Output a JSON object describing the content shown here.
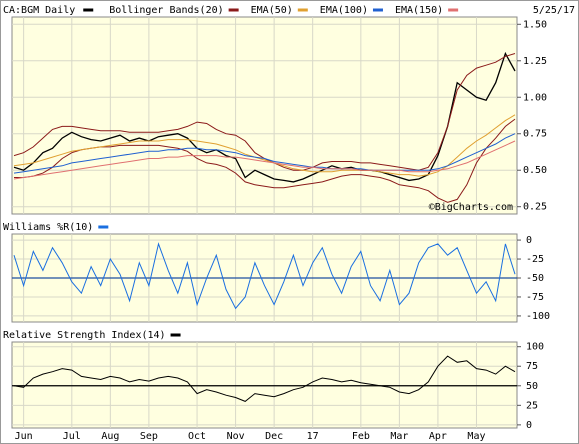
{
  "header": {
    "symbol": "CA:BGM Daily",
    "date": "5/25/17",
    "watermark": "©BigCharts.com"
  },
  "chart_data": [
    {
      "type": "line",
      "ylim": [
        0.2,
        1.55
      ],
      "yticks": [
        {
          "value": 1.5,
          "label": "1.50"
        },
        {
          "value": 1.25,
          "label": "1.25"
        },
        {
          "value": 1.0,
          "label": "1.00"
        },
        {
          "value": 0.75,
          "label": "0.75"
        },
        {
          "value": 0.5,
          "label": "0.50"
        },
        {
          "value": 0.25,
          "label": "0.25"
        }
      ],
      "grid": true,
      "series": [
        {
          "name": "CA:BGM Daily",
          "color": "#000000",
          "values": [
            0.52,
            0.5,
            0.55,
            0.62,
            0.65,
            0.72,
            0.76,
            0.73,
            0.71,
            0.7,
            0.72,
            0.74,
            0.7,
            0.72,
            0.7,
            0.73,
            0.74,
            0.75,
            0.72,
            0.65,
            0.62,
            0.64,
            0.6,
            0.58,
            0.45,
            0.5,
            0.47,
            0.44,
            0.43,
            0.42,
            0.44,
            0.47,
            0.5,
            0.53,
            0.51,
            0.52,
            0.5,
            0.5,
            0.49,
            0.47,
            0.45,
            0.43,
            0.44,
            0.47,
            0.6,
            0.8,
            1.1,
            1.05,
            1.0,
            0.98,
            1.1,
            1.3,
            1.18
          ]
        },
        {
          "name": "Bollinger Bands(20)",
          "color": "#8b1a1a",
          "values": [
            0.6,
            0.62,
            0.66,
            0.72,
            0.78,
            0.8,
            0.8,
            0.79,
            0.78,
            0.77,
            0.77,
            0.77,
            0.76,
            0.76,
            0.76,
            0.76,
            0.77,
            0.78,
            0.8,
            0.83,
            0.82,
            0.78,
            0.75,
            0.74,
            0.7,
            0.62,
            0.58,
            0.55,
            0.52,
            0.5,
            0.5,
            0.52,
            0.55,
            0.56,
            0.56,
            0.56,
            0.55,
            0.55,
            0.54,
            0.53,
            0.52,
            0.51,
            0.5,
            0.52,
            0.62,
            0.8,
            1.05,
            1.15,
            1.2,
            1.22,
            1.24,
            1.28,
            1.3
          ],
          "lower": [
            0.45,
            0.45,
            0.46,
            0.48,
            0.52,
            0.58,
            0.62,
            0.64,
            0.65,
            0.66,
            0.66,
            0.67,
            0.67,
            0.67,
            0.67,
            0.67,
            0.66,
            0.65,
            0.63,
            0.58,
            0.55,
            0.54,
            0.52,
            0.48,
            0.42,
            0.4,
            0.39,
            0.38,
            0.38,
            0.39,
            0.4,
            0.41,
            0.42,
            0.44,
            0.46,
            0.47,
            0.47,
            0.46,
            0.45,
            0.43,
            0.4,
            0.39,
            0.38,
            0.36,
            0.31,
            0.28,
            0.3,
            0.4,
            0.55,
            0.65,
            0.72,
            0.8,
            0.85
          ]
        },
        {
          "name": "EMA(50)",
          "color": "#e0a030",
          "values": [
            0.53,
            0.54,
            0.55,
            0.57,
            0.59,
            0.61,
            0.63,
            0.64,
            0.65,
            0.66,
            0.67,
            0.68,
            0.69,
            0.7,
            0.7,
            0.7,
            0.71,
            0.71,
            0.71,
            0.7,
            0.69,
            0.68,
            0.66,
            0.64,
            0.61,
            0.59,
            0.57,
            0.55,
            0.53,
            0.51,
            0.5,
            0.49,
            0.49,
            0.49,
            0.5,
            0.5,
            0.5,
            0.5,
            0.49,
            0.48,
            0.47,
            0.47,
            0.46,
            0.47,
            0.49,
            0.53,
            0.59,
            0.65,
            0.7,
            0.74,
            0.79,
            0.84,
            0.88
          ]
        },
        {
          "name": "EMA(100)",
          "color": "#2060d0",
          "values": [
            0.48,
            0.49,
            0.5,
            0.51,
            0.52,
            0.53,
            0.55,
            0.56,
            0.57,
            0.58,
            0.59,
            0.6,
            0.61,
            0.62,
            0.63,
            0.63,
            0.64,
            0.64,
            0.65,
            0.65,
            0.64,
            0.64,
            0.63,
            0.62,
            0.6,
            0.59,
            0.58,
            0.56,
            0.55,
            0.54,
            0.53,
            0.52,
            0.52,
            0.51,
            0.51,
            0.51,
            0.51,
            0.5,
            0.5,
            0.5,
            0.5,
            0.5,
            0.5,
            0.5,
            0.51,
            0.53,
            0.56,
            0.59,
            0.62,
            0.65,
            0.68,
            0.72,
            0.75
          ]
        },
        {
          "name": "EMA(150)",
          "color": "#e07070",
          "values": [
            0.44,
            0.45,
            0.46,
            0.47,
            0.48,
            0.49,
            0.5,
            0.51,
            0.52,
            0.53,
            0.54,
            0.55,
            0.56,
            0.57,
            0.58,
            0.58,
            0.59,
            0.59,
            0.6,
            0.6,
            0.6,
            0.6,
            0.59,
            0.59,
            0.58,
            0.57,
            0.56,
            0.55,
            0.54,
            0.53,
            0.52,
            0.52,
            0.51,
            0.51,
            0.51,
            0.51,
            0.5,
            0.5,
            0.5,
            0.5,
            0.5,
            0.49,
            0.49,
            0.49,
            0.5,
            0.51,
            0.53,
            0.55,
            0.58,
            0.61,
            0.64,
            0.67,
            0.7
          ]
        }
      ]
    },
    {
      "type": "line",
      "ylim": [
        -108,
        8
      ],
      "yticks": [
        0,
        -25,
        -50,
        -75,
        -100
      ],
      "grid": true,
      "reference": -50,
      "reference_color": "#1f4fa0",
      "series": [
        {
          "name": "Williams %R(10)",
          "color": "#1a6fe0",
          "values": [
            -20,
            -60,
            -15,
            -40,
            -10,
            -30,
            -55,
            -70,
            -35,
            -60,
            -25,
            -45,
            -80,
            -30,
            -60,
            -5,
            -40,
            -70,
            -30,
            -85,
            -50,
            -20,
            -65,
            -90,
            -75,
            -30,
            -60,
            -85,
            -55,
            -20,
            -60,
            -30,
            -10,
            -45,
            -70,
            -35,
            -15,
            -60,
            -80,
            -40,
            -85,
            -70,
            -30,
            -10,
            -5,
            -20,
            -10,
            -40,
            -70,
            -55,
            -80,
            -5,
            -45
          ]
        }
      ]
    },
    {
      "type": "line",
      "ylim": [
        -4,
        106
      ],
      "yticks": [
        100,
        75,
        50,
        25,
        0
      ],
      "grid": true,
      "reference": 50,
      "reference_color": "#000000",
      "categories": [
        null,
        "Jun",
        null,
        null,
        null,
        null,
        "Jul",
        null,
        null,
        null,
        "Aug",
        null,
        null,
        null,
        "Sep",
        null,
        null,
        null,
        null,
        "Oct",
        null,
        null,
        null,
        "Nov",
        null,
        null,
        null,
        "Dec",
        null,
        null,
        null,
        "17",
        null,
        null,
        null,
        null,
        "Feb",
        null,
        null,
        null,
        "Mar",
        null,
        null,
        null,
        "Apr",
        null,
        null,
        null,
        "May",
        null,
        null,
        null,
        null
      ],
      "series": [
        {
          "name": "Relative Strength Index(14)",
          "color": "#000000",
          "values": [
            50,
            48,
            60,
            65,
            68,
            72,
            70,
            62,
            60,
            58,
            62,
            60,
            55,
            58,
            56,
            60,
            62,
            60,
            55,
            40,
            45,
            42,
            38,
            35,
            30,
            40,
            38,
            36,
            40,
            45,
            48,
            55,
            60,
            58,
            55,
            57,
            54,
            52,
            50,
            48,
            42,
            40,
            45,
            55,
            75,
            88,
            80,
            82,
            72,
            70,
            65,
            75,
            68
          ]
        }
      ]
    }
  ]
}
